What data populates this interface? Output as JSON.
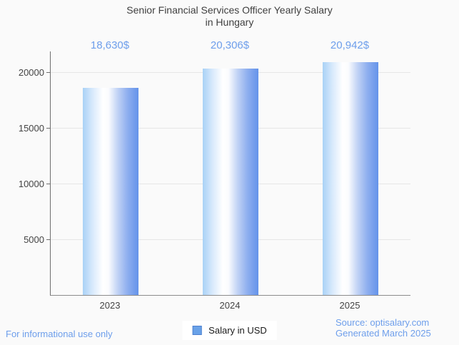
{
  "header": {
    "title_line1": "Senior Financial Services Officer Yearly Salary",
    "title_line2": "in Hungary"
  },
  "chart_data": {
    "type": "bar",
    "title": "Senior Financial Services Officer Yearly Salary in Hungary",
    "categories": [
      "2023",
      "2024",
      "2025"
    ],
    "series": [
      {
        "name": "Salary in USD",
        "values": [
          18630,
          20306,
          20942
        ]
      }
    ],
    "annotations": [
      "18,630$",
      "20,306$",
      "20,942$"
    ],
    "xlabel": "",
    "ylabel": "",
    "ylim": [
      0,
      21875
    ],
    "yticks": [
      5000,
      10000,
      15000,
      20000
    ],
    "grid": true,
    "legend_position": "bottom"
  },
  "legend": {
    "label": "Salary in USD",
    "swatch_color": "#6aa2e8"
  },
  "footer": {
    "left": "For informational use only",
    "source": "Source: optisalary.com",
    "generated": "Generated March 2025"
  },
  "colors": {
    "accent_blue": "#6d9eeb",
    "bar_edge_blue": "#6493ea",
    "bar_light_blue": "#a9d1f6",
    "title_text": "#3f3f3f",
    "axis_text": "#444444",
    "gridline": "#e6e6e6",
    "background": "#fafafa",
    "legend_text": "#1a1a1a"
  }
}
